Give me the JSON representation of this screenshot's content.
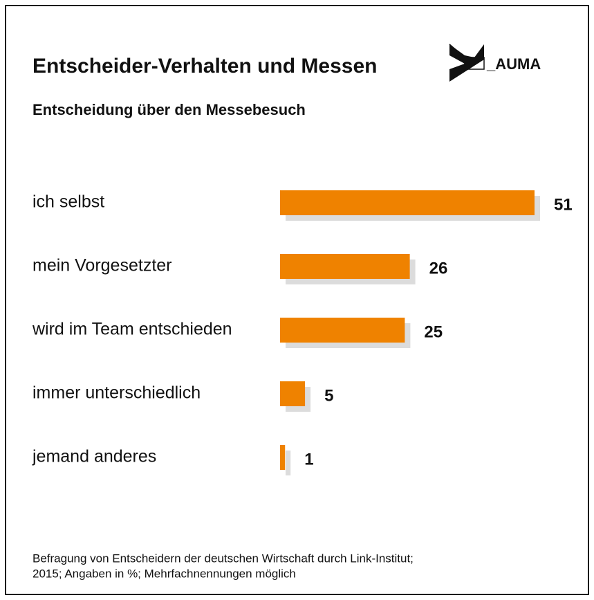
{
  "chart_data": {
    "type": "hbar",
    "title": "Entscheider-Verhalten und Messen",
    "subtitle": "Entscheidung über den Messebesuch",
    "logo": "_AUMA",
    "categories": [
      "ich selbst",
      "mein Vorgesetzter",
      "wird im Team entschieden",
      "immer unterschiedlich",
      "jemand anderes"
    ],
    "values": [
      51,
      26,
      25,
      5,
      1
    ],
    "color": "#ef8200",
    "shadow_color": "#dcdcdc",
    "footnote": [
      "Befragung von Entscheidern der deutschen Wirtschaft durch Link-Institut;",
      "2015; Angaben in %; Mehrfachnennungen möglich"
    ]
  }
}
